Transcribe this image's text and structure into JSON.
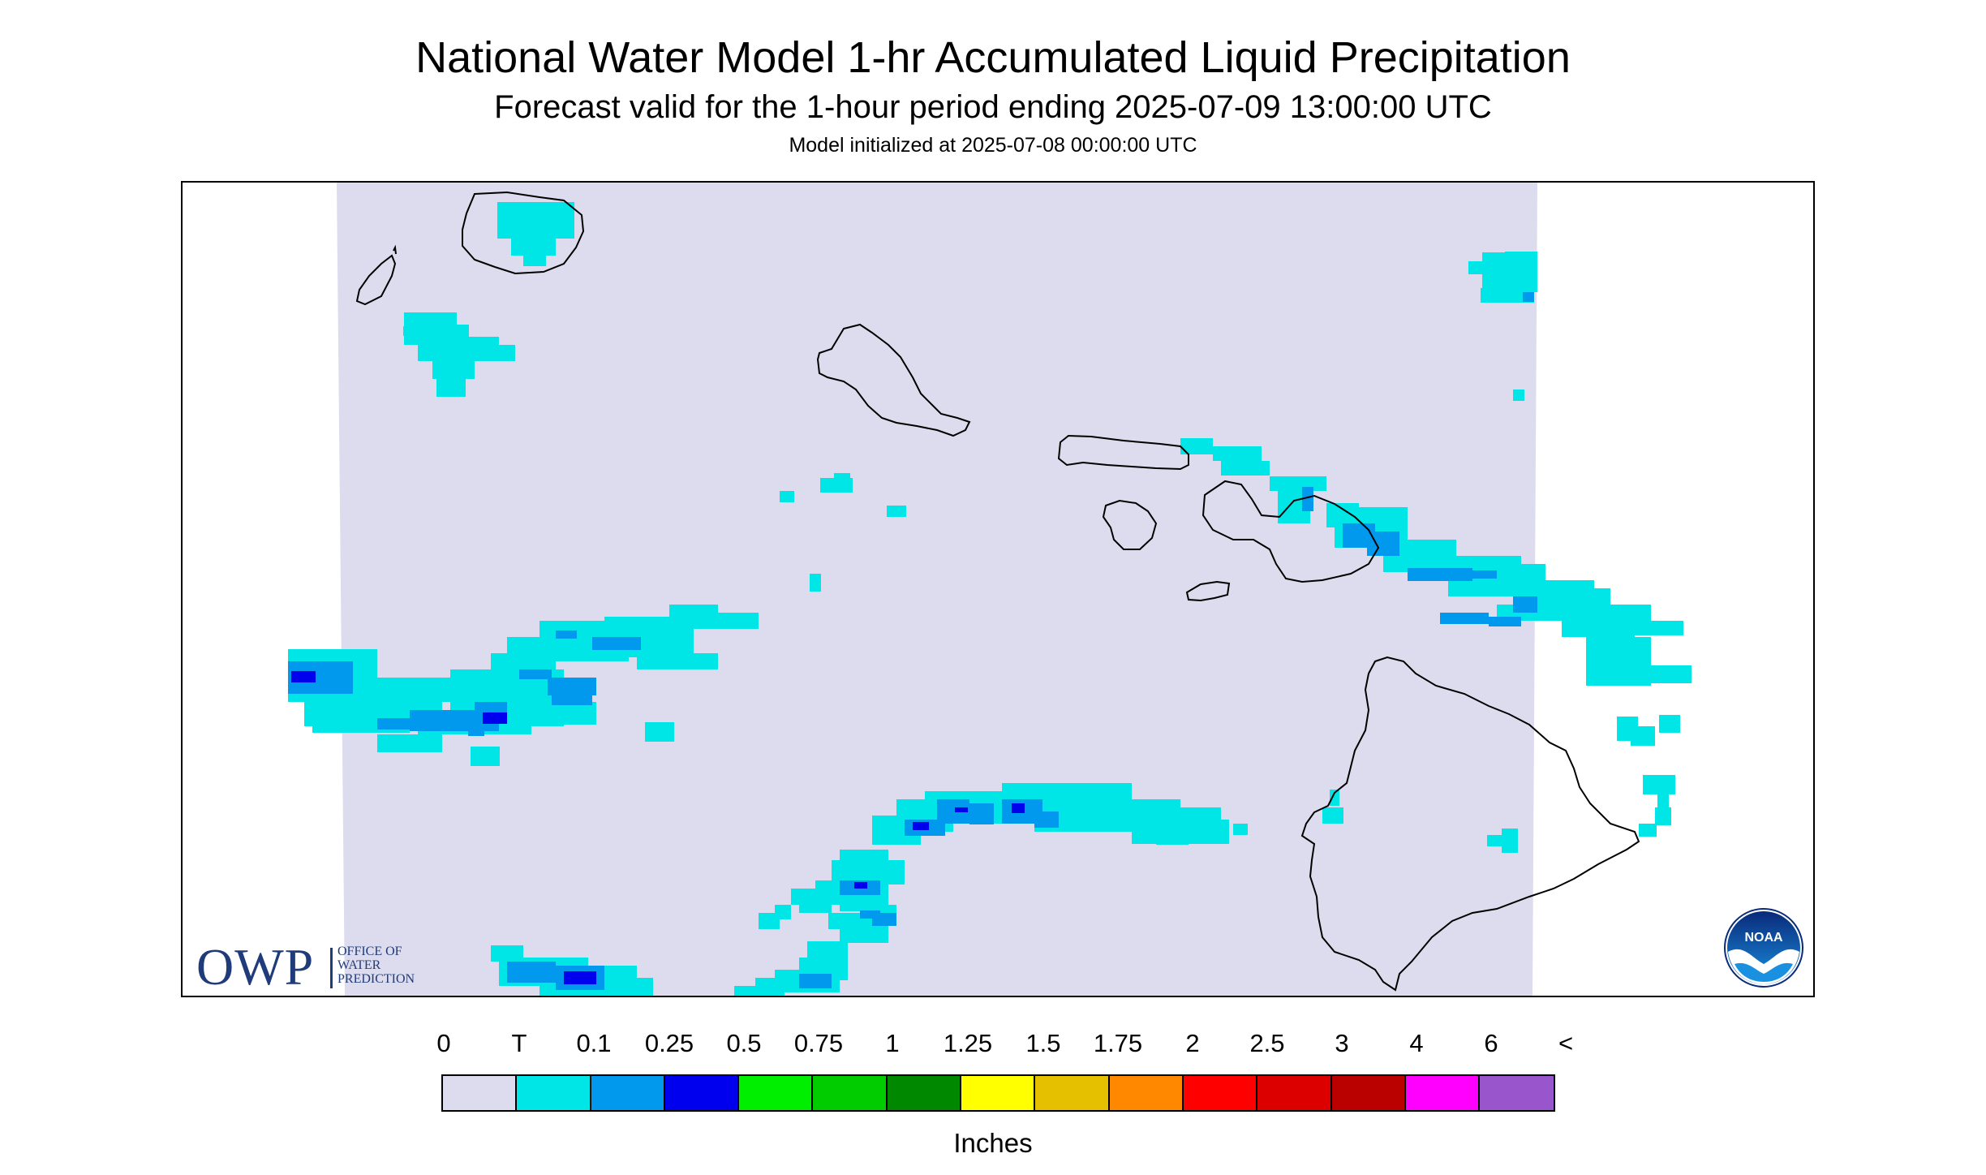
{
  "header": {
    "title": "National Water Model 1-hr Accumulated Liquid Precipitation",
    "subtitle": "Forecast valid for the 1-hour period ending 2025-07-09 13:00:00 UTC",
    "init": "Model initialized at 2025-07-08 00:00:00 UTC"
  },
  "map": {
    "region": "Hawaii",
    "background_color": "#dcdcee",
    "coastline_color": "#000000"
  },
  "logos": {
    "owp_abbrev": "OWP",
    "owp_line1": "OFFICE OF",
    "owp_line2": "WATER",
    "owp_line3": "PREDICTION",
    "noaa_text": "NOAA"
  },
  "legend": {
    "labels": [
      "0",
      "T",
      "0.1",
      "0.25",
      "0.5",
      "0.75",
      "1",
      "1.25",
      "1.5",
      "1.75",
      "2",
      "2.5",
      "3",
      "4",
      "6",
      "<"
    ],
    "colors": [
      "#dcdcee",
      "#00e5e5",
      "#0099ee",
      "#0000ee",
      "#00ee00",
      "#00cc00",
      "#008800",
      "#ffff00",
      "#e5c000",
      "#ff8800",
      "#ff0000",
      "#dd0000",
      "#bb0000",
      "#ff00ff",
      "#9955cc"
    ],
    "units": "Inches"
  }
}
